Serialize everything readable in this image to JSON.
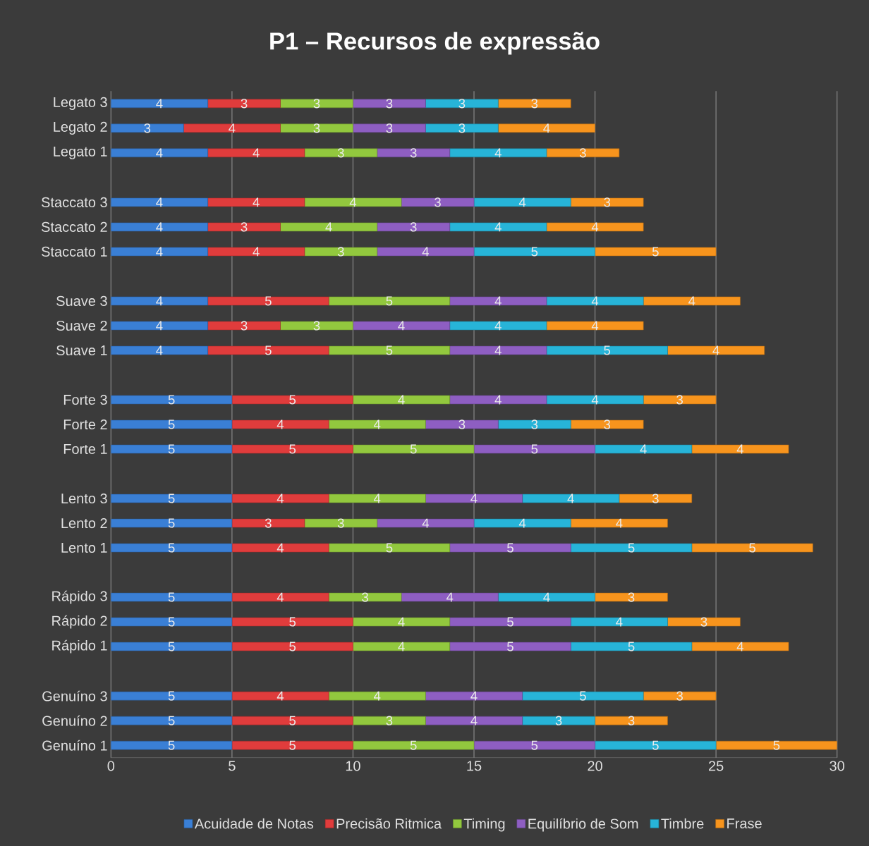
{
  "chart_data": {
    "type": "bar",
    "orientation": "horizontal",
    "stacked": true,
    "title": "P1 – Recursos de expressão",
    "categories": [
      "Legato 3",
      "Legato 2",
      "Legato 1",
      null,
      "Staccato 3",
      "Staccato 2",
      "Staccato 1",
      null,
      "Suave 3",
      "Suave 2",
      "Suave 1",
      null,
      "Forte 3",
      "Forte 2",
      "Forte 1",
      null,
      "Lento 3",
      "Lento 2",
      "Lento 1",
      null,
      "Rápido 3",
      "Rápido 2",
      "Rápido 1",
      null,
      "Genuíno 3",
      "Genuíno 2",
      "Genuíno 1"
    ],
    "series": [
      {
        "name": "Acuidade de Notas",
        "color": "#3a7fd5",
        "values": [
          4,
          3,
          4,
          null,
          4,
          4,
          4,
          null,
          4,
          4,
          4,
          null,
          5,
          5,
          5,
          null,
          5,
          5,
          5,
          null,
          5,
          5,
          5,
          null,
          5,
          5,
          5
        ]
      },
      {
        "name": "Precisão Ritmica",
        "color": "#e03c3c",
        "values": [
          3,
          4,
          4,
          null,
          4,
          3,
          4,
          null,
          5,
          3,
          5,
          null,
          5,
          4,
          5,
          null,
          4,
          3,
          4,
          null,
          4,
          5,
          5,
          null,
          4,
          5,
          5
        ]
      },
      {
        "name": "Timing",
        "color": "#92c83e",
        "values": [
          3,
          3,
          3,
          null,
          4,
          4,
          3,
          null,
          5,
          3,
          5,
          null,
          4,
          4,
          5,
          null,
          4,
          3,
          5,
          null,
          3,
          4,
          4,
          null,
          4,
          3,
          5
        ]
      },
      {
        "name": "Equilíbrio de Som",
        "color": "#8e5ec2",
        "values": [
          3,
          3,
          3,
          null,
          3,
          3,
          4,
          null,
          4,
          4,
          4,
          null,
          4,
          3,
          5,
          null,
          4,
          4,
          5,
          null,
          4,
          5,
          5,
          null,
          4,
          4,
          5
        ]
      },
      {
        "name": "Timbre",
        "color": "#27b4d8",
        "values": [
          3,
          3,
          4,
          null,
          4,
          4,
          5,
          null,
          4,
          4,
          5,
          null,
          4,
          3,
          4,
          null,
          4,
          4,
          5,
          null,
          4,
          4,
          5,
          null,
          5,
          3,
          5
        ]
      },
      {
        "name": "Frase",
        "color": "#f7941d",
        "values": [
          3,
          4,
          3,
          null,
          3,
          4,
          5,
          null,
          4,
          4,
          4,
          null,
          3,
          3,
          4,
          null,
          3,
          4,
          5,
          null,
          3,
          3,
          4,
          null,
          3,
          3,
          5
        ]
      }
    ],
    "xlim": [
      0,
      30
    ],
    "xticks": [
      0,
      5,
      10,
      15,
      20,
      25,
      30
    ],
    "grid": "x",
    "legend": "bottom",
    "data_labels": true
  }
}
